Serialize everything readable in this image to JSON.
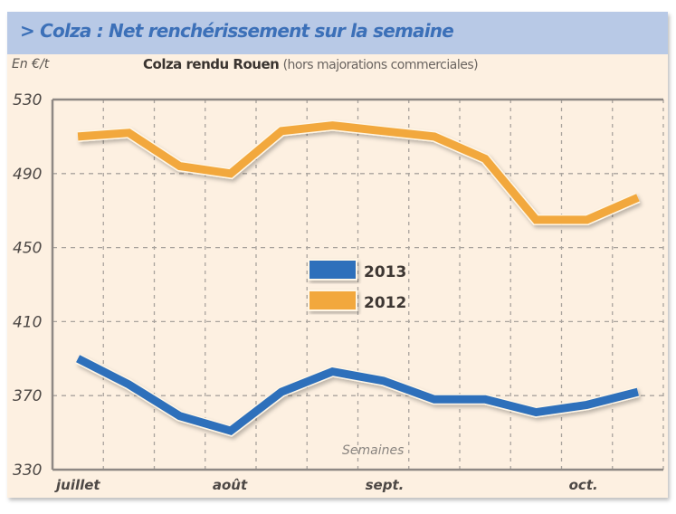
{
  "header": {
    "title": "> Colza : Net renchérissement sur la semaine"
  },
  "unit": "En €/t",
  "chart_title": {
    "main": "Colza rendu Rouen",
    "sub": "(hors majorations commerciales)"
  },
  "colors": {
    "header_bg": "#b8c9e6",
    "header_text": "#3c70b8",
    "panel_bg": "#fdf0e1",
    "series_2013": "#2f6fbb",
    "series_2012": "#f2a83c",
    "grid": "#a9a39d",
    "axis": "#8e8884"
  },
  "chart_data": {
    "type": "line",
    "title": "Colza rendu Rouen (hors majorations commerciales)",
    "xlabel": "Semaines",
    "ylabel": "En €/t",
    "ylim": [
      330,
      530
    ],
    "yticks": [
      330,
      370,
      410,
      450,
      490,
      530
    ],
    "grid": true,
    "x": [
      1,
      2,
      3,
      4,
      5,
      6,
      7,
      8,
      9,
      10,
      11,
      12
    ],
    "x_month_labels": [
      {
        "label": "juillet",
        "at": 1
      },
      {
        "label": "août",
        "at": 4
      },
      {
        "label": "sept.",
        "at": 7
      },
      {
        "label": "oct.",
        "at": 11
      }
    ],
    "legend_position": "center",
    "series": [
      {
        "name": "2013",
        "values": [
          390,
          376,
          359,
          351,
          372,
          383,
          378,
          368,
          368,
          361,
          365,
          372
        ]
      },
      {
        "name": "2012",
        "values": [
          510,
          512,
          494,
          490,
          513,
          516,
          513,
          510,
          498,
          465,
          465,
          477
        ]
      }
    ]
  }
}
